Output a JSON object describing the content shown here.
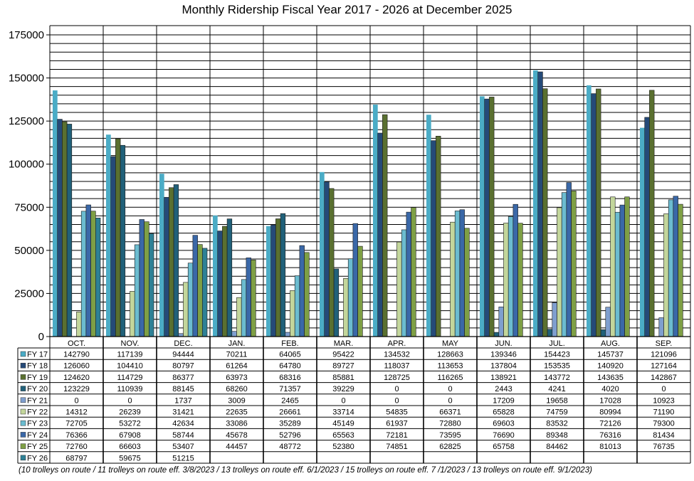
{
  "chart_data": {
    "type": "bar",
    "title": "Monthly Ridership Fiscal Year 2017 - 2026 at December 2025",
    "xlabel": "",
    "ylabel": "",
    "ylim": [
      0,
      175000
    ],
    "yticks": [
      0,
      25000,
      50000,
      75000,
      100000,
      125000,
      150000,
      175000
    ],
    "minor_grid_step": 5000,
    "grid": true,
    "legend": "data-table-left",
    "categories": [
      "OCT.",
      "NOV.",
      "DEC.",
      "JAN.",
      "FEB.",
      "MAR.",
      "APR.",
      "MAY",
      "JUN.",
      "JUL.",
      "AUG.",
      "SEP."
    ],
    "series": [
      {
        "name": "FY 17",
        "color": "#4BACC6",
        "values": [
          142790,
          117139,
          94444,
          70211,
          64065,
          95422,
          134532,
          128663,
          139346,
          154423,
          145737,
          121096
        ]
      },
      {
        "name": "FY 18",
        "color": "#254A78",
        "values": [
          126060,
          104410,
          80797,
          61264,
          64780,
          89727,
          118037,
          113653,
          137804,
          153535,
          140920,
          127164
        ]
      },
      {
        "name": "FY 19",
        "color": "#5A7030",
        "values": [
          124620,
          114729,
          86377,
          63973,
          68316,
          85881,
          128725,
          116265,
          138921,
          143772,
          143635,
          142867
        ]
      },
      {
        "name": "FY 20",
        "color": "#21617A",
        "values": [
          123229,
          110939,
          88145,
          68260,
          71357,
          39229,
          0,
          0,
          2443,
          4241,
          4020,
          0
        ]
      },
      {
        "name": "FY 21",
        "color": "#7F9FCF",
        "values": [
          0,
          0,
          1737,
          3009,
          2465,
          0,
          0,
          0,
          17209,
          19658,
          17028,
          10923
        ]
      },
      {
        "name": "FY 22",
        "color": "#C3D69B",
        "values": [
          14312,
          26239,
          31421,
          22635,
          26661,
          33714,
          54835,
          66371,
          65828,
          74759,
          80994,
          71190
        ]
      },
      {
        "name": "FY 23",
        "color": "#6BBCD0",
        "values": [
          72705,
          53272,
          42634,
          33086,
          35289,
          45149,
          61937,
          72880,
          69603,
          83532,
          72126,
          79300
        ]
      },
      {
        "name": "FY 24",
        "color": "#3A68A8",
        "values": [
          76366,
          67908,
          58744,
          45678,
          52796,
          65563,
          72181,
          73595,
          76690,
          89348,
          76316,
          81434
        ]
      },
      {
        "name": "FY 25",
        "color": "#7E9F45",
        "values": [
          72760,
          66603,
          53407,
          44457,
          48772,
          52380,
          74851,
          62825,
          65758,
          84462,
          81013,
          76735
        ]
      },
      {
        "name": "FY 26",
        "color": "#2E8196",
        "values": [
          68797,
          59675,
          51215,
          null,
          null,
          null,
          null,
          null,
          null,
          null,
          null,
          null
        ]
      }
    ]
  },
  "footnote": "(10 trolleys on route / 11 trolleys on route eff. 3/8/2023 / 13 trolleys on route eff. 6/1/2023 / 15 trolleys on route eff. 7 /1/2023 / 13 trolleys on route eff. 9/1/2023)"
}
